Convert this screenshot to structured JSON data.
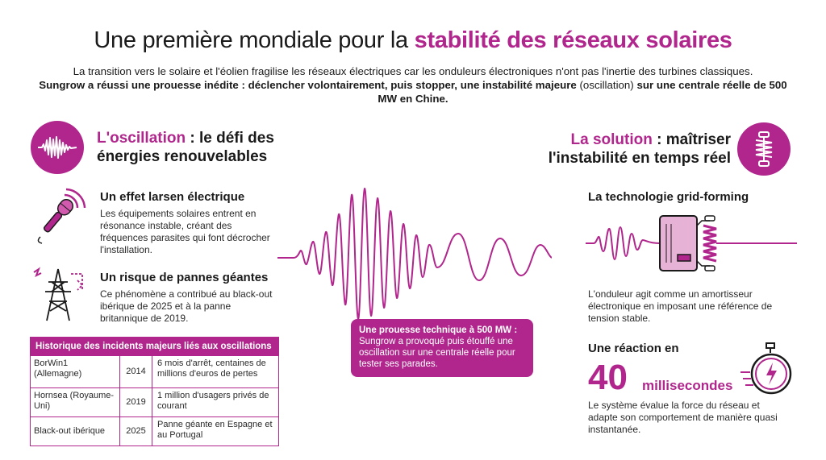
{
  "header": {
    "title_prefix": "Une première mondiale pour la ",
    "title_accent": "stabilité des réseaux solaires",
    "intro_line1": "La transition vers le solaire et l'éolien fragilise les réseaux électriques car les onduleurs électroniques n'ont pas l'inertie des turbines classiques.",
    "intro_bold1": "Sungrow a réussi une prouesse inédite : déclencher volontairement, puis stopper, une instabilité majeure",
    "intro_normal": " (oscillation) ",
    "intro_bold2": "sur une centrale réelle de 500 MW en Chine."
  },
  "left": {
    "heading_accent": "L'oscillation",
    "heading_rest1": " : le défi des",
    "heading_rest2": "énergies renouvelables",
    "item1_title": "Un effet larsen électrique",
    "item1_body": "Les équipements solaires entrent en résonance instable, créant des fréquences parasites qui font décrocher l'installation.",
    "item2_title": "Un risque de pannes géantes",
    "item2_body": "Ce phénomène a contribué au black-out ibérique de 2025 et à la panne britannique de 2019.",
    "table": {
      "header": "Historique des incidents majeurs liés aux oscillations",
      "rows": [
        {
          "name": "BorWin1 (Allemagne)",
          "year": "2014",
          "impact": "6 mois d'arrêt, centaines de millions d'euros de pertes"
        },
        {
          "name": "Hornsea (Royaume-Uni)",
          "year": "2019",
          "impact": "1 million d'usagers privés de courant"
        },
        {
          "name": "Black-out ibérique",
          "year": "2025",
          "impact": "Panne géante en Espagne et au Portugal"
        }
      ]
    }
  },
  "center": {
    "callout_title": "Une prouesse technique à 500 MW :",
    "callout_body": "Sungrow a provoqué puis étouffé une oscillation sur une centrale réelle pour tester ses parades."
  },
  "right": {
    "heading_accent": "La solution",
    "heading_rest1": " : maîtriser",
    "heading_rest2": "l'instabilité en temps réel",
    "item1_title": "La technologie grid-forming",
    "item1_body": "L'onduleur agit comme un amortisseur électronique en imposant une référence de tension stable.",
    "item2_title": "Une réaction en",
    "big_number": "40",
    "big_unit": "millisecondes",
    "item2_body": "Le système évalue la force du réseau et adapte son comportement de manière quasi instantanée."
  },
  "colors": {
    "accent": "#b0268c",
    "accent_light": "#e6b3d6",
    "text": "#1a1a1a"
  },
  "icons": [
    "waveform-icon",
    "shock-absorber-icon",
    "microphone-icon",
    "pylon-icon",
    "inverter-icon",
    "stopwatch-icon"
  ]
}
